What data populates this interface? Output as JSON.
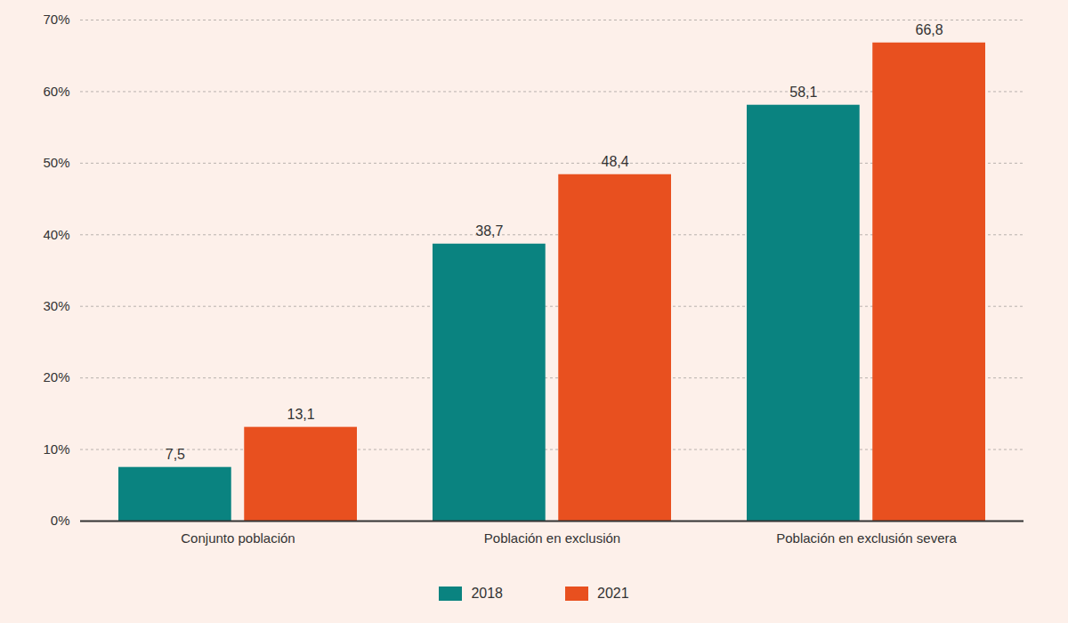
{
  "chart_data": {
    "type": "bar",
    "categories": [
      "Conjunto población",
      "Población en exclusión",
      "Población en exclusión severa"
    ],
    "series": [
      {
        "name": "2018",
        "color": "#0a8380",
        "values": [
          7.5,
          38.7,
          58.1
        ],
        "value_labels": [
          "7,5",
          "38,7",
          "58,1"
        ]
      },
      {
        "name": "2021",
        "color": "#e8501f",
        "values": [
          13.1,
          48.4,
          66.8
        ],
        "value_labels": [
          "13,1",
          "48,4",
          "66,8"
        ]
      }
    ],
    "ylim": [
      0,
      70
    ],
    "yticks": [
      {
        "value": 0,
        "label": "0%"
      },
      {
        "value": 10,
        "label": "10%"
      },
      {
        "value": 20,
        "label": "20%"
      },
      {
        "value": 30,
        "label": "30%"
      },
      {
        "value": 40,
        "label": "40%"
      },
      {
        "value": 50,
        "label": "50%"
      },
      {
        "value": 60,
        "label": "60%"
      },
      {
        "value": 70,
        "label": "70%"
      }
    ],
    "grid": true,
    "data_labels": true,
    "legend": "bottom"
  }
}
